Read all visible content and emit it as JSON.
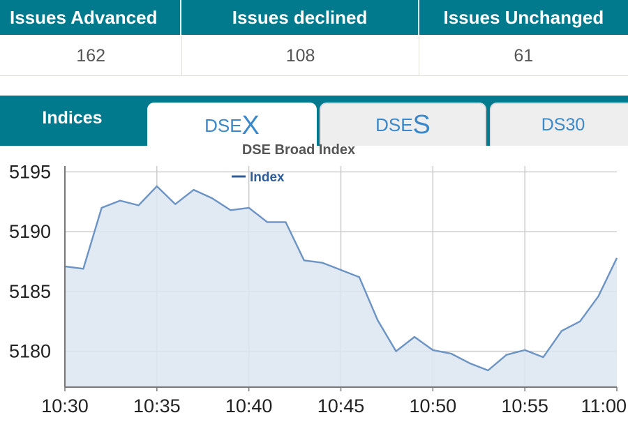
{
  "stats": {
    "headers": [
      "Issues Advanced",
      "Issues declined",
      "Issues Unchanged"
    ],
    "values": [
      "162",
      "108",
      "61"
    ]
  },
  "tabs": {
    "heading": "Indices",
    "items": [
      {
        "prefix": "DSE",
        "letter": "X",
        "active": true
      },
      {
        "prefix": "DSE",
        "letter": "S",
        "active": false
      },
      {
        "label": "DS30",
        "active": false
      }
    ]
  },
  "colors": {
    "header_teal": "#007a8c",
    "line": "#6b93c4",
    "fill": "#dce5f0",
    "tab_text": "#3a88c9"
  },
  "chart_data": {
    "type": "area",
    "title": "DSE Broad Index",
    "legend": {
      "label": "Index",
      "position": "top-center"
    },
    "xlabel": "",
    "ylabel": "",
    "x_ticks": [
      "10:30",
      "10:35",
      "10:40",
      "10:45",
      "10:50",
      "10:55",
      "11:00"
    ],
    "y_ticks": [
      5180,
      5185,
      5190,
      5195
    ],
    "xlim": [
      "10:30",
      "11:00"
    ],
    "ylim": [
      5177,
      5195.2
    ],
    "grid": true,
    "series": [
      {
        "name": "Index",
        "x": [
          "10:30",
          "10:31",
          "10:32",
          "10:33",
          "10:34",
          "10:35",
          "10:36",
          "10:37",
          "10:38",
          "10:39",
          "10:40",
          "10:41",
          "10:42",
          "10:43",
          "10:44",
          "10:45",
          "10:46",
          "10:47",
          "10:48",
          "10:49",
          "10:50",
          "10:51",
          "10:52",
          "10:53",
          "10:54",
          "10:55",
          "10:56",
          "10:57",
          "10:58",
          "10:59",
          "11:00"
        ],
        "values": [
          5187.1,
          5186.9,
          5192.0,
          5192.6,
          5192.2,
          5193.8,
          5192.3,
          5193.5,
          5192.8,
          5191.8,
          5192.0,
          5190.8,
          5190.8,
          5187.6,
          5187.4,
          5186.8,
          5186.2,
          5182.6,
          5180.0,
          5181.2,
          5180.1,
          5179.8,
          5179.0,
          5178.4,
          5179.7,
          5180.1,
          5179.5,
          5181.7,
          5182.5,
          5184.6,
          5187.8
        ]
      }
    ]
  }
}
